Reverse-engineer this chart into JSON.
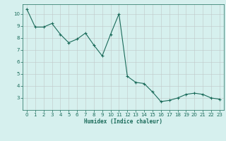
{
  "x": [
    0,
    1,
    2,
    3,
    4,
    5,
    6,
    7,
    8,
    9,
    10,
    11,
    12,
    13,
    14,
    15,
    16,
    17,
    18,
    19,
    20,
    21,
    22,
    23
  ],
  "y": [
    10.4,
    8.9,
    8.9,
    9.2,
    8.3,
    7.6,
    7.9,
    8.4,
    7.4,
    6.5,
    8.3,
    10.0,
    4.8,
    4.3,
    4.2,
    3.5,
    2.7,
    2.8,
    3.0,
    3.3,
    3.4,
    3.3,
    3.0,
    2.9
  ],
  "line_color": "#1a6b5a",
  "marker": "+",
  "marker_size": 3,
  "background_color": "#d6f0ee",
  "grid_color": "#c0c8c8",
  "xlabel": "Humidex (Indice chaleur)",
  "xlim_min": -0.5,
  "xlim_max": 23.5,
  "ylim_min": 2.0,
  "ylim_max": 10.8,
  "yticks": [
    3,
    4,
    5,
    6,
    7,
    8,
    9,
    10
  ],
  "xticks": [
    0,
    1,
    2,
    3,
    4,
    5,
    6,
    7,
    8,
    9,
    10,
    11,
    12,
    13,
    14,
    15,
    16,
    17,
    18,
    19,
    20,
    21,
    22,
    23
  ],
  "label_fontsize": 5.5,
  "tick_fontsize": 5.0,
  "linewidth": 0.8,
  "markeredgewidth": 0.8
}
